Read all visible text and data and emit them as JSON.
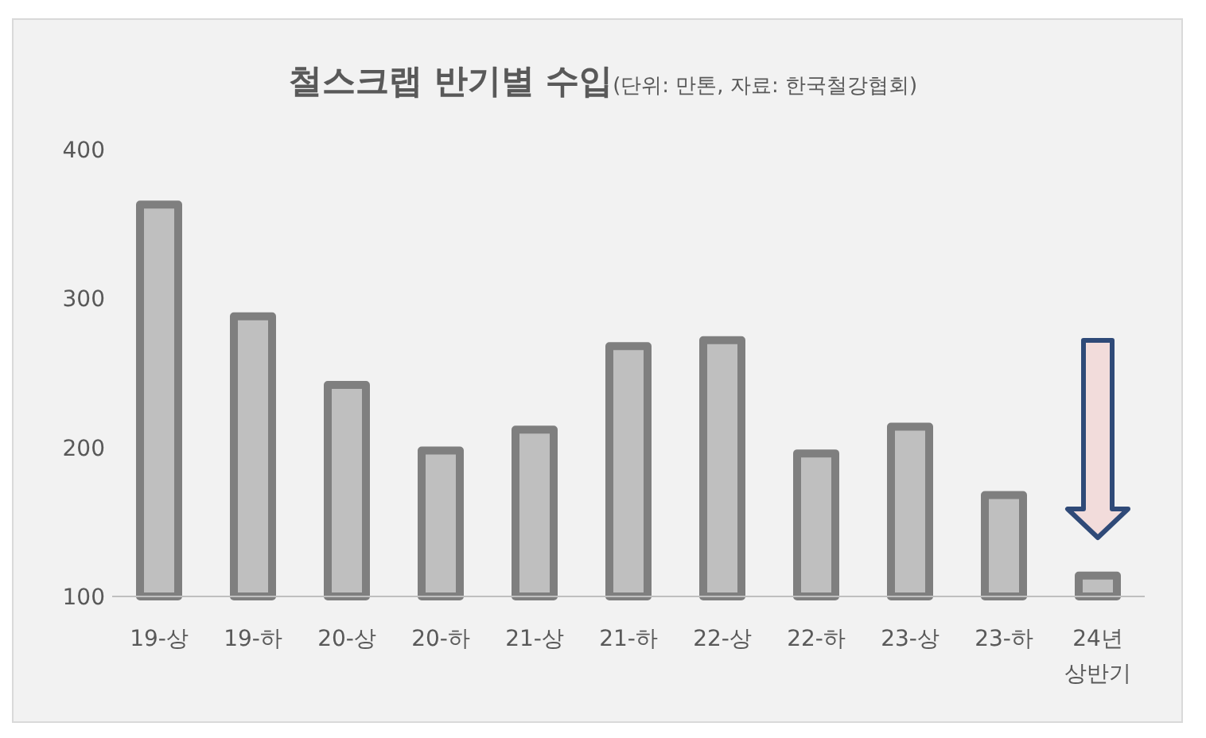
{
  "chart_data": {
    "type": "bar",
    "title": "철스크랩 반기별 수입",
    "subtitle": "(단위: 만톤, 자료: 한국철강협회)",
    "categories": [
      "19-상",
      "19-하",
      "20-상",
      "20-하",
      "21-상",
      "21-하",
      "22-상",
      "22-하",
      "23-상",
      "23-하",
      "24년\n상반기"
    ],
    "series": [
      {
        "color": "#bfbfbf",
        "values": [
          363,
          288,
          242,
          198,
          212,
          268,
          272,
          196,
          214,
          168,
          114
        ]
      }
    ],
    "ylim": [
      100,
      400
    ],
    "yticks": [
      100,
      200,
      300,
      400
    ],
    "grid": false
  }
}
